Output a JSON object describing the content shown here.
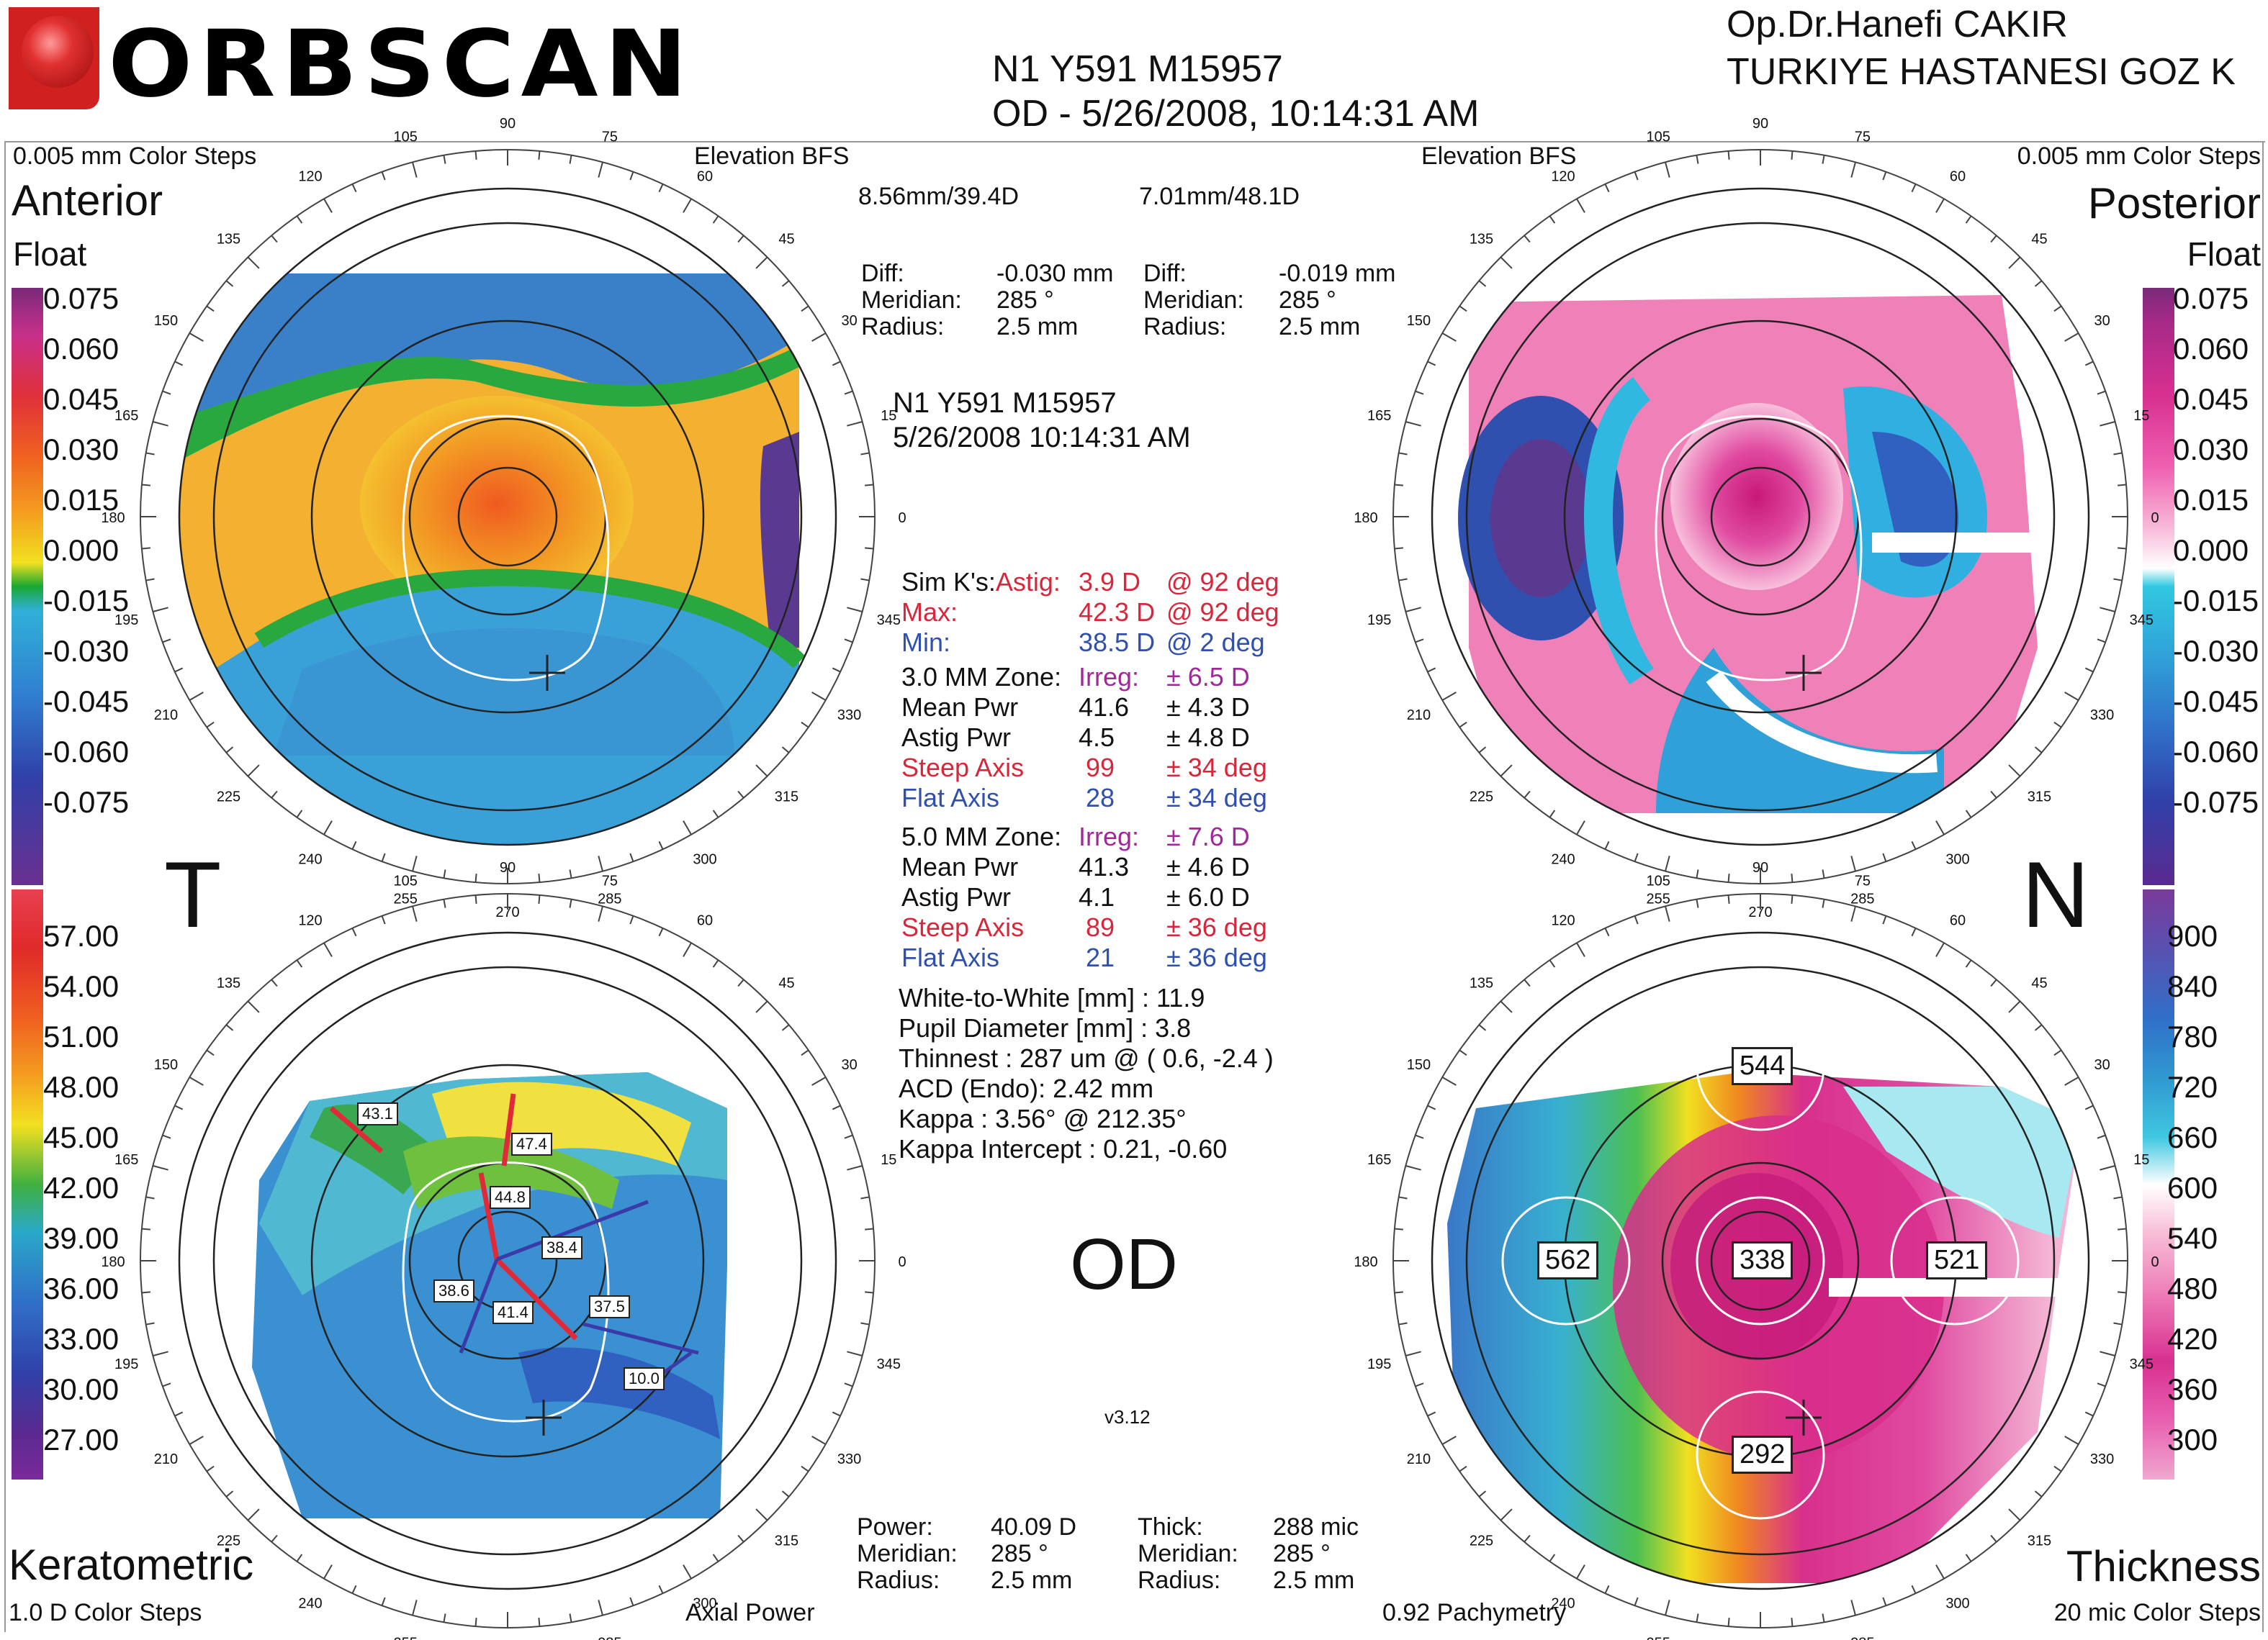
{
  "header": {
    "logo_text": "ORBSCAN",
    "patient_id": "N1 Y591 M15957",
    "eye_date": "OD - 5/26/2008, 10:14:31 AM",
    "doctor": "Op.Dr.Hanefi CAKIR",
    "hospital": "TURKIYE HASTANESI GOZ K"
  },
  "anterior": {
    "color_steps": "0.005 mm Color Steps",
    "map_type": "Elevation BFS",
    "title": "Anterior",
    "subtitle": "Float",
    "bfs": "8.56mm/39.4D",
    "diff_label": "Diff:",
    "diff_value": "-0.030 mm",
    "meridian_label": "Meridian:",
    "meridian_value": "285 °",
    "radius_label": "Radius:",
    "radius_value": "2.5 mm",
    "scale": [
      "0.075",
      "0.060",
      "0.045",
      "0.030",
      "0.015",
      "0.000",
      "-0.015",
      "-0.030",
      "-0.045",
      "-0.060",
      "-0.075"
    ]
  },
  "posterior": {
    "color_steps": "0.005 mm Color Steps",
    "map_type": "Elevation BFS",
    "title": "Posterior",
    "subtitle": "Float",
    "bfs": "7.01mm/48.1D",
    "diff_label": "Diff:",
    "diff_value": "-0.019 mm",
    "meridian_label": "Meridian:",
    "meridian_value": "285 °",
    "radius_label": "Radius:",
    "radius_value": "2.5 mm",
    "scale": [
      "0.075",
      "0.060",
      "0.045",
      "0.030",
      "0.015",
      "0.000",
      "-0.015",
      "-0.030",
      "-0.045",
      "-0.060",
      "-0.075"
    ]
  },
  "keratometric": {
    "title": "Keratometric",
    "color_steps": "1.0 D Color Steps",
    "map_type": "Axial Power",
    "power_label": "Power:",
    "power_value": "40.09 D",
    "meridian_label": "Meridian:",
    "meridian_value": "285 °",
    "radius_label": "Radius:",
    "radius_value": "2.5 mm",
    "scale": [
      "57.00",
      "54.00",
      "51.00",
      "48.00",
      "45.00",
      "42.00",
      "39.00",
      "36.00",
      "33.00",
      "30.00",
      "27.00"
    ],
    "map_labels": [
      "43.1",
      "47.4",
      "44.8",
      "38.4",
      "38.6",
      "41.4",
      "37.5",
      "10.0"
    ]
  },
  "thickness": {
    "title": "Thickness",
    "color_steps": "20 mic Color Steps",
    "map_type": "0.92 Pachymetry",
    "thick_label": "Thick:",
    "thick_value": "288 mic",
    "meridian_label": "Meridian:",
    "meridian_value": "285 °",
    "radius_label": "Radius:",
    "radius_value": "2.5 mm",
    "scale": [
      "900",
      "840",
      "780",
      "720",
      "660",
      "600",
      "540",
      "480",
      "420",
      "360",
      "300"
    ],
    "map_labels": [
      "544",
      "562",
      "338",
      "521",
      "292"
    ]
  },
  "side_letters": {
    "left": "T",
    "right": "N"
  },
  "center": {
    "patient_id": "N1 Y591 M15957",
    "datetime": "5/26/2008 10:14:31 AM",
    "simk_label": "Sim K's:",
    "astig_label": "Astig:",
    "astig_value": "3.9 D",
    "astig_deg": "@ 92 deg",
    "max_label": "Max:",
    "max_value": "42.3 D",
    "max_deg": "@ 92 deg",
    "min_label": "Min:",
    "min_value": "38.5 D",
    "min_deg": "@ 2 deg",
    "zone3_label": "3.0 MM Zone:",
    "zone3_irreg_label": "Irreg:",
    "zone3_irreg": "± 6.5 D",
    "zone3_mean_label": "Mean Pwr",
    "zone3_mean": "41.6",
    "zone3_mean_sd": "± 4.3 D",
    "zone3_astig_label": "Astig Pwr",
    "zone3_astig": "4.5",
    "zone3_astig_sd": "± 4.8 D",
    "zone3_steep_label": "Steep Axis",
    "zone3_steep": "99",
    "zone3_steep_sd": "± 34 deg",
    "zone3_flat_label": "Flat Axis",
    "zone3_flat": "28",
    "zone3_flat_sd": "± 34 deg",
    "zone5_label": "5.0 MM Zone:",
    "zone5_irreg_label": "Irreg:",
    "zone5_irreg": "± 7.6 D",
    "zone5_mean_label": "Mean Pwr",
    "zone5_mean": "41.3",
    "zone5_mean_sd": "± 4.6 D",
    "zone5_astig_label": "Astig Pwr",
    "zone5_astig": "4.1",
    "zone5_astig_sd": "± 6.0 D",
    "zone5_steep_label": "Steep Axis",
    "zone5_steep": "89",
    "zone5_steep_sd": "± 36 deg",
    "zone5_flat_label": "Flat Axis",
    "zone5_flat": "21",
    "zone5_flat_sd": "± 36 deg",
    "wtw": "White-to-White [mm] : 11.9",
    "pupil": "Pupil Diameter [mm] :  3.8",
    "thinnest": "Thinnest : 287 um @ ( 0.6, -2.4 )",
    "acd": "ACD (Endo): 2.42 mm",
    "kappa": "Kappa : 3.56° @ 212.35°",
    "kappa_intercept": "Kappa Intercept : 0.21, -0.60",
    "eye": "OD",
    "version": "v3.12"
  },
  "dial_labels": [
    "90",
    "75",
    "60",
    "45",
    "30",
    "15",
    "0",
    "345",
    "330",
    "315",
    "300",
    "285",
    "270",
    "255",
    "240",
    "225",
    "210",
    "195",
    "180",
    "165",
    "150",
    "135",
    "120",
    "105"
  ],
  "colors": {
    "accent_red": "#d8263a",
    "accent_blue": "#3050b0",
    "accent_purple": "#a0289a"
  }
}
